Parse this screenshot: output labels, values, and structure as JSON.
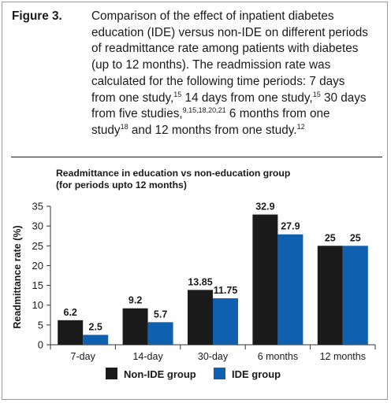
{
  "caption": {
    "figure_label": "Figure 3.",
    "lines": [
      "Comparison of the effect of inpatient diabetes",
      "education (IDE) versus non-IDE on different periods",
      "of readmittance rate among patients with diabetes",
      "(up to 12 months). The readmission rate was",
      "calculated for the following time periods: 7 days",
      "from one study,|15| 14 days from one study,|15| 30 days",
      "from five studies,|9,15,18,20,21| 6 months from one",
      "study|18| and 12 months from one study.|12|"
    ]
  },
  "chart_data": {
    "type": "bar",
    "title_lines": [
      "Readmittance in education vs non-education group",
      "(for periods upto 12 months)"
    ],
    "ylabel": "Readmittance rate (%)",
    "xlabel": "",
    "ylim": [
      0,
      35
    ],
    "yticks": [
      0,
      5,
      10,
      15,
      20,
      25,
      30,
      35
    ],
    "categories": [
      "7-day",
      "14-day",
      "30-day",
      "6 months",
      "12 months"
    ],
    "series": [
      {
        "name": "Non-IDE group",
        "color": "#1a1a1a",
        "values": [
          6.2,
          9.2,
          13.85,
          32.9,
          25
        ],
        "labels": [
          "6.2",
          "9.2",
          "13.85",
          "32.9",
          "25"
        ]
      },
      {
        "name": "IDE group",
        "color": "#1060b0",
        "values": [
          2.5,
          5.7,
          11.75,
          27.9,
          25
        ],
        "labels": [
          "2.5",
          "5.7",
          "11.75",
          "27.9",
          "25"
        ]
      }
    ],
    "grid": false,
    "legend": "bottom"
  }
}
